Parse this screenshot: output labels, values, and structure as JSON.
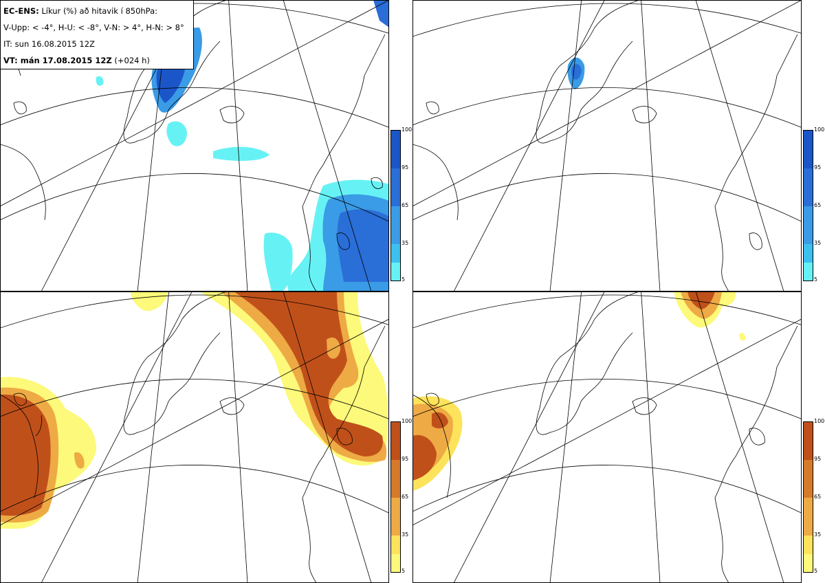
{
  "legend": {
    "title_bold": "EC-ENS:",
    "title_rest": "Líkur (%) að hitavik í 850hPa:",
    "categories": "V-Upp: < -4°, H-U: < -8°, V-N: > 4°, H-N: > 8°",
    "init_time": "IT: sun 16.08.2015 12Z",
    "valid_bold": "VT: mán 17.08.2015 12Z",
    "valid_rest": "(+024 h)"
  },
  "colorbar": {
    "ticks": [
      "100",
      "95",
      "65",
      "35",
      "5"
    ],
    "cold_colors": [
      "#66f2f5",
      "#3cc0ee",
      "#3a9be6",
      "#2a6ed8",
      "#1b56c8"
    ],
    "warm_colors": [
      "#fdf97a",
      "#fde35b",
      "#eeaa44",
      "#d67a2a",
      "#c0501a"
    ]
  },
  "panels": [
    {
      "id": "cold-4",
      "legend_code": "V-Upp",
      "threshold": "< -4°"
    },
    {
      "id": "cold-8",
      "legend_code": "H-U",
      "threshold": "< -8°"
    },
    {
      "id": "warm-4",
      "legend_code": "V-N",
      "threshold": "> 4°"
    },
    {
      "id": "warm-8",
      "legend_code": "H-N",
      "threshold": "> 8°"
    }
  ]
}
